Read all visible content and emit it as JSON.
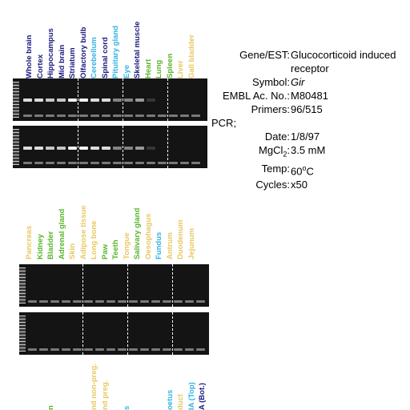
{
  "colors": {
    "dark_blue": "#1a1a7e",
    "light_blue": "#33b2e5",
    "green": "#58b52a",
    "yellow": "#e8c860",
    "gel_background": "#141414",
    "band": "#f2f2f2"
  },
  "panel1": {
    "lanes": [
      {
        "label": "Whole brain",
        "color": "#1a1a7e"
      },
      {
        "label": "Cortex",
        "color": "#1a1a7e"
      },
      {
        "label": "Hippocampus",
        "color": "#1a1a7e"
      },
      {
        "label": "Mid brain",
        "color": "#1a1a7e"
      },
      {
        "label": "Striatum",
        "color": "#1a1a7e"
      },
      {
        "label": "Olfactory bulb",
        "color": "#1a1a7e"
      },
      {
        "label": "Cerebellum",
        "color": "#33b2e5"
      },
      {
        "label": "Spinal cord",
        "color": "#1a1a7e"
      },
      {
        "label": "Pituitary gland",
        "color": "#33b2e5"
      },
      {
        "label": "Eye",
        "color": "#33b2e5"
      },
      {
        "label": "Skeletal muscle",
        "color": "#1a1a7e"
      },
      {
        "label": "Heart",
        "color": "#58b52a"
      },
      {
        "label": "Lung",
        "color": "#58b52a"
      },
      {
        "label": "Spleen",
        "color": "#58b52a"
      },
      {
        "label": "Liver",
        "color": "#e8c860"
      },
      {
        "label": "Gall bladder",
        "color": "#e8c860"
      }
    ],
    "band_intensity": [
      0.9,
      0.9,
      0.8,
      0.8,
      1.0,
      1.0,
      0.9,
      0.9,
      0.5,
      0.5,
      0.6,
      0.15,
      0.0,
      0.0,
      0.0,
      0.0
    ]
  },
  "panel2": {
    "lanes": [
      {
        "label": "Pancreas",
        "color": "#e8c860"
      },
      {
        "label": "Kidney",
        "color": "#58b52a"
      },
      {
        "label": "Bladder",
        "color": "#58b52a"
      },
      {
        "label": "Adrenal gland",
        "color": "#58b52a"
      },
      {
        "label": "Skin",
        "color": "#e8c860"
      },
      {
        "label": "Adipose tissue",
        "color": "#e8c860"
      },
      {
        "label": "Long bone",
        "color": "#e8c860"
      },
      {
        "label": "Paw",
        "color": "#58b52a"
      },
      {
        "label": "Teeth",
        "color": "#58b52a"
      },
      {
        "label": "Tongue",
        "color": "#e8c860"
      },
      {
        "label": "Salivary gland",
        "color": "#58b52a"
      },
      {
        "label": "Oesophagus",
        "color": "#e8c860"
      },
      {
        "label": "Fundus",
        "color": "#33b2e5"
      },
      {
        "label": "Antrum",
        "color": "#e8c860"
      },
      {
        "label": "Duodenum",
        "color": "#e8c860"
      },
      {
        "label": "Jejunum",
        "color": "#e8c860"
      }
    ]
  },
  "panel3": {
    "lanes": [
      {
        "label": "",
        "color": "#e8c860"
      },
      {
        "label": "",
        "color": "#e8c860"
      },
      {
        "label": "n",
        "color": "#58b52a"
      },
      {
        "label": "",
        "color": "#e8c860"
      },
      {
        "label": "",
        "color": "#e8c860"
      },
      {
        "label": "",
        "color": "#e8c860"
      },
      {
        "label": "nd non-preg.",
        "color": "#e8c860"
      },
      {
        "label": "nd preg.",
        "color": "#e8c860"
      },
      {
        "label": "",
        "color": "#e8c860"
      },
      {
        "label": "s",
        "color": "#33b2e5"
      },
      {
        "label": "",
        "color": "#e8c860"
      },
      {
        "label": "",
        "color": "#e8c860"
      },
      {
        "label": "",
        "color": "#e8c860"
      },
      {
        "label": "oetus",
        "color": "#33b2e5"
      },
      {
        "label": "duct",
        "color": "#e8c860"
      },
      {
        "label": "IA (Top)",
        "color": "#33b2e5"
      },
      {
        "label": "A (Bot.)",
        "color": "#1a1a7e"
      }
    ]
  },
  "info": {
    "gene_key": "Gene/EST:",
    "gene_val": "Glucocorticoid induced",
    "gene_val2": "receptor",
    "symbol_key": "Symbol:",
    "symbol_val": "Gir",
    "embl_key": "EMBL Ac. No.:",
    "embl_val": "M80481",
    "primers_key": "Primers:",
    "primers_val": "96/515",
    "pcr_label": "PCR;",
    "date_key": "Date:",
    "date_val": "1/8/97",
    "mgcl_key_base": "MgCl",
    "mgcl_key_sub": "2",
    "mgcl_key_end": ":",
    "mgcl_val": "3.5 mM",
    "temp_key": "Temp:",
    "temp_val_num": "60",
    "temp_val_sup": "o",
    "temp_val_unit": "C",
    "cycles_key": "Cycles:",
    "cycles_val": "x50"
  }
}
